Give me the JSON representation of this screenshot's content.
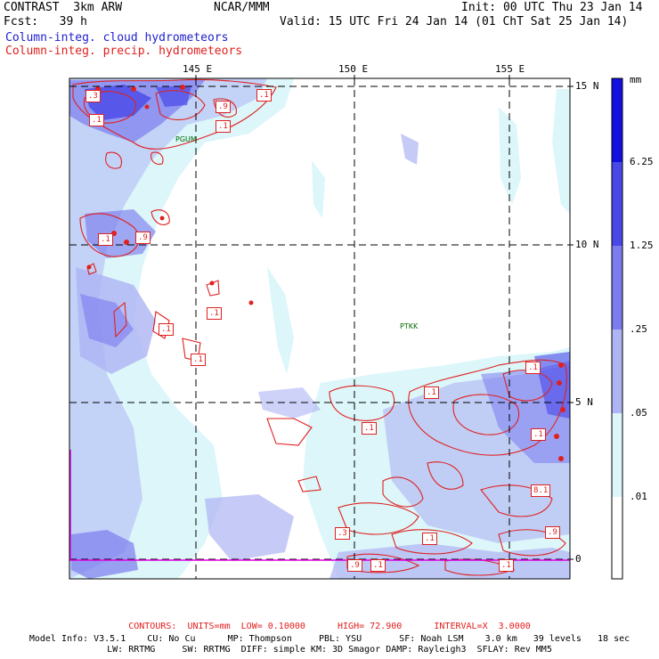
{
  "header": {
    "left_line1": "CONTRAST  3km ARW",
    "center_line1": "NCAR/MMM",
    "right_line1": "Init: 00 UTC Thu 23 Jan 14",
    "left_line2": "Fcst:   39 h",
    "right_line2": "Valid: 15 UTC Fri 24 Jan 14 (01 ChT Sat 25 Jan 14)",
    "field1": "Column-integ. cloud hydrometeors",
    "field2": "Column-integ. precip. hydrometeors",
    "field1_color": "#2020d0",
    "field2_color": "#e0201e"
  },
  "map": {
    "lon_labels": [
      "145 E",
      "150 E",
      "155 E"
    ],
    "lat_labels": [
      "15 N",
      "10 N",
      "5 N",
      "0"
    ],
    "stations": [
      "PGUM",
      "PTKK"
    ],
    "contour_labels": [
      ".3",
      ".1",
      ".9",
      ".1",
      ".1",
      ".1",
      ".9",
      ".1",
      ".1",
      ".1",
      ".1",
      ".1",
      ".1",
      ".1",
      "8.1",
      ".3",
      ".1",
      ".9",
      ".9",
      ".1",
      ".1"
    ]
  },
  "colorbar": {
    "unit": "mm",
    "labels": [
      "6.25",
      "1.25",
      ".25",
      ".05",
      ".01"
    ],
    "colors": [
      "#1010e0",
      "#4848e8",
      "#7c7cee",
      "#aeb4f4",
      "#dcf6fa",
      "#ffffff"
    ]
  },
  "footer": {
    "contours": "CONTOURS:  UNITS=mm  LOW= 0.10000      HIGH= 72.900      INTERVAL=X  3.0000",
    "model_info1": "Model Info: V3.5.1    CU: No Cu      MP: Thompson     PBL: YSU       SF: Noah LSM    3.0 km   39 levels   18 sec",
    "model_info2": "LW: RRTMG     SW: RRTMG  DIFF: simple KM: 3D Smagor DAMP: Rayleigh3  SFLAY: Rev MM5"
  }
}
